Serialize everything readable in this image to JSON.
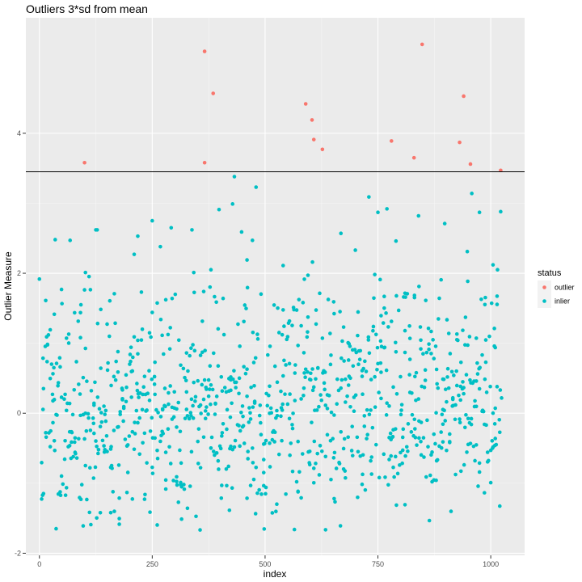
{
  "chart_data": {
    "type": "scatter",
    "title": "Outliers 3*sd from mean",
    "xlabel": "index",
    "ylabel": "Outlier Measure",
    "xlim": [
      -30,
      1075
    ],
    "ylim": [
      -2.03,
      5.65
    ],
    "x_ticks": [
      0,
      250,
      500,
      750,
      1000
    ],
    "x_tick_labels": [
      "0",
      "250",
      "500",
      "750",
      "1000"
    ],
    "y_ticks": [
      -2,
      0,
      2,
      4
    ],
    "y_tick_labels": [
      "-2",
      "0",
      "2",
      "4"
    ],
    "threshold": 3.45,
    "grid": true,
    "background": "#ebebeb",
    "legend": {
      "title": "status",
      "position": "right",
      "entries": [
        {
          "label": "outlier",
          "color": "#f8766d"
        },
        {
          "label": "inlier",
          "color": "#00bfc4"
        }
      ]
    },
    "series": [
      {
        "name": "outlier",
        "color": "#f8766d",
        "x": [
          100,
          366,
          366,
          385,
          590,
          604,
          608,
          627,
          780,
          830,
          848,
          931,
          940,
          955,
          1022
        ],
        "y": [
          3.58,
          5.17,
          3.58,
          4.57,
          4.42,
          4.19,
          3.91,
          3.77,
          3.89,
          3.65,
          5.27,
          3.87,
          4.53,
          3.56,
          3.47
        ]
      },
      {
        "name": "inlier",
        "color": "#00bfc4",
        "n": 1006,
        "seed": 7,
        "highlights_x": [
          35,
          68,
          102,
          125,
          128,
          210,
          218,
          250,
          268,
          292,
          338,
          342,
          380,
          398,
          428,
          432,
          448,
          460,
          472,
          480,
          540,
          605,
          668,
          700,
          730,
          750,
          770,
          790,
          840,
          898,
          948,
          958,
          975,
          1005,
          1015,
          1022
        ],
        "highlights_y": [
          2.48,
          2.47,
          2.01,
          2.62,
          2.62,
          2.27,
          2.53,
          2.75,
          2.38,
          2.65,
          2.62,
          2.01,
          2.05,
          2.91,
          2.99,
          3.38,
          2.59,
          2.19,
          2.47,
          3.23,
          2.11,
          2.16,
          2.57,
          2.33,
          3.09,
          2.87,
          2.92,
          2.46,
          2.82,
          2.71,
          2.31,
          3.14,
          2.87,
          2.12,
          2.05,
          2.88
        ]
      }
    ]
  }
}
